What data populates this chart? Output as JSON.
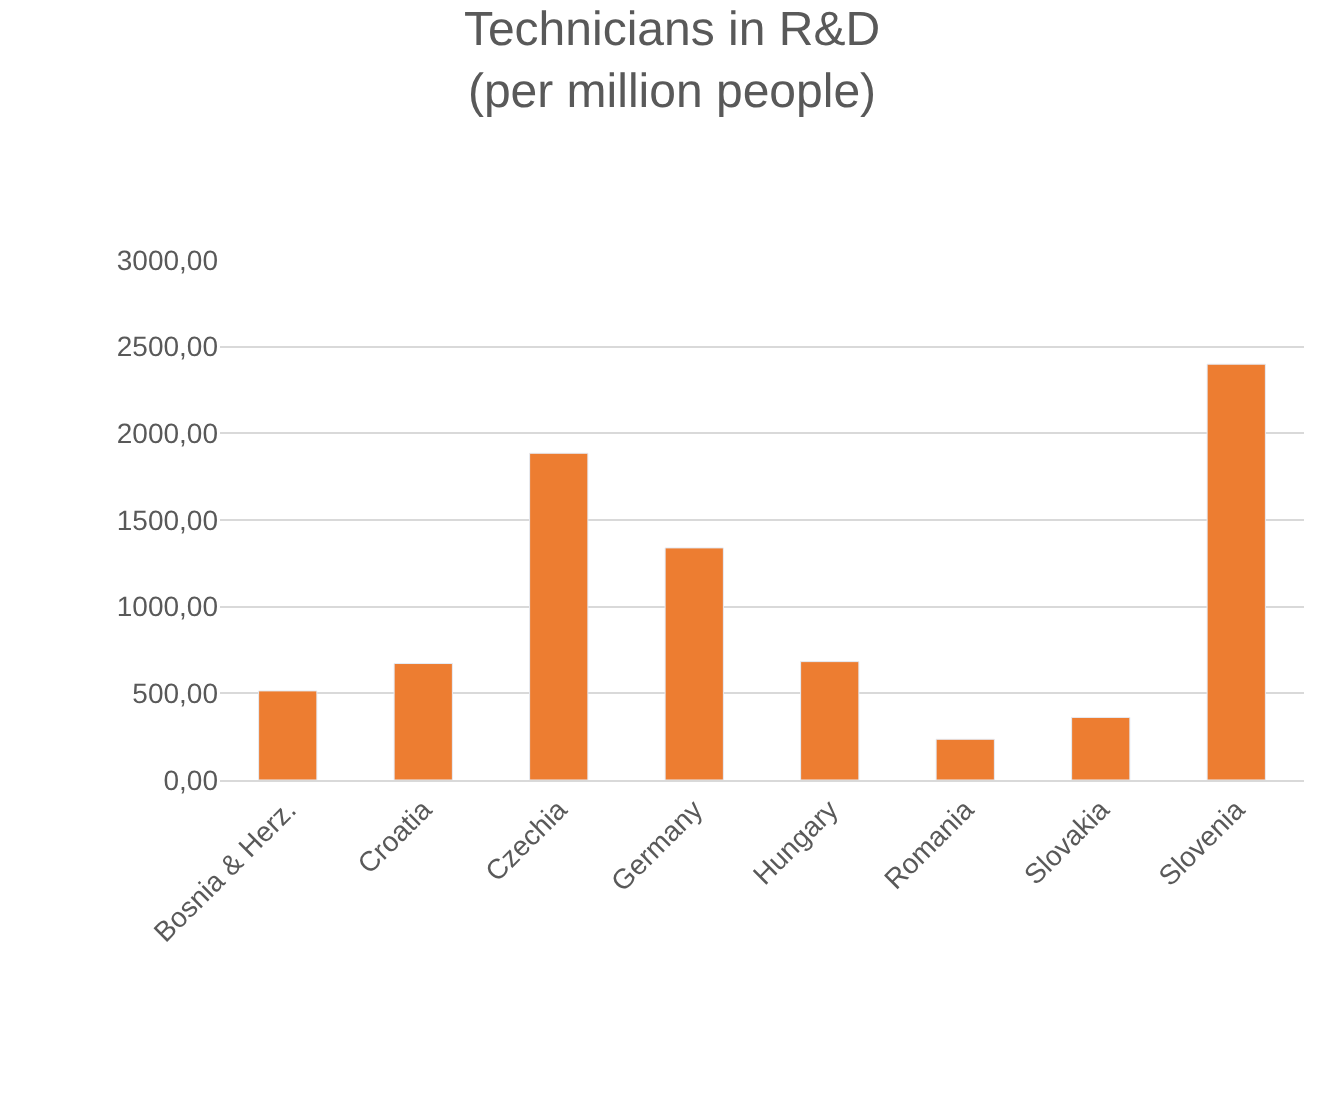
{
  "chart_data": {
    "type": "bar",
    "title": "Technicians in R&D\n(per million people)",
    "categories": [
      "Bosnia & Herz.",
      "Croatia",
      "Czechia",
      "Germany",
      "Hungary",
      "Romania",
      "Slovakia",
      "Slovenia"
    ],
    "values": [
      514,
      672,
      1885,
      1339,
      683,
      235,
      361,
      2399
    ],
    "color": "#ed7d31",
    "ylim": [
      0,
      3000
    ],
    "yticks": [
      {
        "value": 0,
        "label": "0,00"
      },
      {
        "value": 500,
        "label": "500,00"
      },
      {
        "value": 1000,
        "label": "1000,00"
      },
      {
        "value": 1500,
        "label": "1500,00"
      },
      {
        "value": 2000,
        "label": "2000,00"
      },
      {
        "value": 2500,
        "label": "2500,00"
      },
      {
        "value": 3000,
        "label": "3000,00"
      }
    ],
    "grid": "y"
  }
}
